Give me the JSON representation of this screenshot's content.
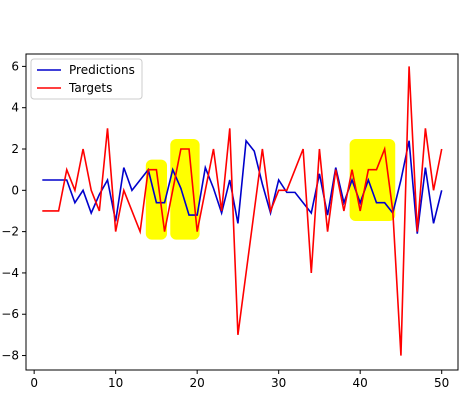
{
  "chart_data": {
    "type": "line",
    "title": "",
    "xlabel": "",
    "ylabel": "",
    "xlim": [
      -1,
      52
    ],
    "ylim": [
      -8.7,
      6.6
    ],
    "xticks": [
      0,
      10,
      20,
      30,
      40,
      50
    ],
    "yticks": [
      -8,
      -6,
      -4,
      -2,
      0,
      2,
      4,
      6
    ],
    "grid": false,
    "legend_position": "top-left",
    "series": [
      {
        "name": "Predictions",
        "color": "#0000cc",
        "x": [
          1,
          2,
          3,
          4,
          5,
          6,
          7,
          8,
          9,
          10,
          11,
          12,
          13,
          14,
          15,
          16,
          17,
          18,
          19,
          20,
          21,
          22,
          23,
          24,
          25,
          26,
          27,
          28,
          29,
          30,
          31,
          32,
          33,
          34,
          35,
          36,
          37,
          38,
          39,
          40,
          41,
          42,
          43,
          44,
          45,
          46,
          47,
          48,
          49,
          50
        ],
        "values": [
          0.5,
          0.5,
          0.5,
          0.5,
          -0.6,
          0,
          -1.1,
          -0.2,
          0.5,
          -1.5,
          1.1,
          0,
          0.5,
          1,
          -0.6,
          -0.6,
          1,
          0.1,
          -1.2,
          -1.2,
          1.1,
          0.1,
          -1.1,
          0.5,
          -1.6,
          2.4,
          1.9,
          0.3,
          -1.1,
          0.5,
          -0.1,
          -0.1,
          -0.6,
          -1.1,
          0.8,
          -1.2,
          1.1,
          -0.6,
          0.5,
          -0.6,
          0.5,
          -0.6,
          -0.6,
          -1.1,
          0.5,
          2.4,
          -2.1,
          1.1,
          -1.6,
          0
        ]
      },
      {
        "name": "Targets",
        "color": "#ff0000",
        "x": [
          1,
          2,
          3,
          4,
          5,
          6,
          7,
          8,
          9,
          10,
          11,
          12,
          13,
          14,
          15,
          16,
          17,
          18,
          19,
          20,
          21,
          22,
          23,
          24,
          25,
          26,
          27,
          28,
          29,
          30,
          31,
          32,
          33,
          34,
          35,
          36,
          37,
          38,
          39,
          40,
          41,
          42,
          43,
          44,
          45,
          46,
          47,
          48,
          49,
          50
        ],
        "values": [
          -1,
          -1,
          -1,
          1,
          0,
          2,
          0,
          -1,
          3,
          -2,
          0,
          -1,
          -2,
          1,
          1,
          -2,
          0,
          2,
          2,
          -2,
          0,
          2,
          -1,
          3,
          -7,
          -4,
          -1,
          2,
          -1,
          0,
          0,
          1,
          2,
          -4,
          2,
          -2,
          1,
          -1,
          1,
          -1,
          1,
          1,
          2,
          -1,
          -8,
          6,
          -2,
          3,
          0,
          2
        ]
      }
    ]
  },
  "annotations": {
    "color": "#ffff00",
    "highlight_x_ranges": [
      [
        14,
        16
      ],
      [
        17,
        20
      ],
      [
        39,
        44
      ]
    ]
  }
}
